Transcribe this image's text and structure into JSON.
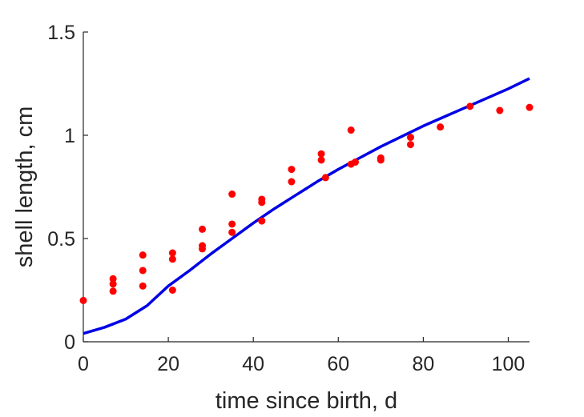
{
  "chart_data": {
    "type": "scatter",
    "xlabel": "time since birth, d",
    "ylabel": "shell length, cm",
    "xlim": [
      0,
      105
    ],
    "ylim": [
      0,
      1.5
    ],
    "x_ticks": [
      0,
      20,
      40,
      60,
      80,
      100
    ],
    "y_ticks": [
      0,
      0.5,
      1,
      1.5
    ],
    "x_tick_labels": [
      "0",
      "20",
      "40",
      "60",
      "80",
      "100"
    ],
    "y_tick_labels": [
      "0",
      "0.5",
      "1",
      "1.5"
    ],
    "grid": false,
    "series": [
      {
        "type": "scatter",
        "color": "#ff0000",
        "points": [
          [
            0,
            0.2
          ],
          [
            7,
            0.305
          ],
          [
            7,
            0.28
          ],
          [
            7,
            0.245
          ],
          [
            14,
            0.42
          ],
          [
            14,
            0.345
          ],
          [
            14,
            0.27
          ],
          [
            21,
            0.43
          ],
          [
            21,
            0.4
          ],
          [
            21,
            0.25
          ],
          [
            28,
            0.545
          ],
          [
            28,
            0.465
          ],
          [
            28,
            0.45
          ],
          [
            35,
            0.715
          ],
          [
            35,
            0.57
          ],
          [
            35,
            0.53
          ],
          [
            42,
            0.69
          ],
          [
            42,
            0.675
          ],
          [
            42,
            0.585
          ],
          [
            49,
            0.835
          ],
          [
            49,
            0.775
          ],
          [
            56,
            0.91
          ],
          [
            56,
            0.88
          ],
          [
            57,
            0.795
          ],
          [
            63,
            1.025
          ],
          [
            63,
            0.86
          ],
          [
            64,
            0.87
          ],
          [
            70,
            0.89
          ],
          [
            70,
            0.88
          ],
          [
            77,
            0.99
          ],
          [
            77,
            0.955
          ],
          [
            84,
            1.04
          ],
          [
            91,
            1.14
          ],
          [
            98,
            1.12
          ],
          [
            105,
            1.135
          ]
        ]
      },
      {
        "type": "line",
        "color": "#0000e6",
        "x": [
          0,
          5,
          10,
          15,
          20,
          25,
          30,
          35,
          40,
          45,
          50,
          55,
          60,
          65,
          70,
          75,
          80,
          85,
          90,
          95,
          100,
          105
        ],
        "y": [
          0.04,
          0.07,
          0.11,
          0.175,
          0.27,
          0.345,
          0.425,
          0.5,
          0.575,
          0.645,
          0.71,
          0.775,
          0.835,
          0.89,
          0.945,
          0.995,
          1.045,
          1.09,
          1.135,
          1.18,
          1.225,
          1.275
        ]
      }
    ]
  }
}
